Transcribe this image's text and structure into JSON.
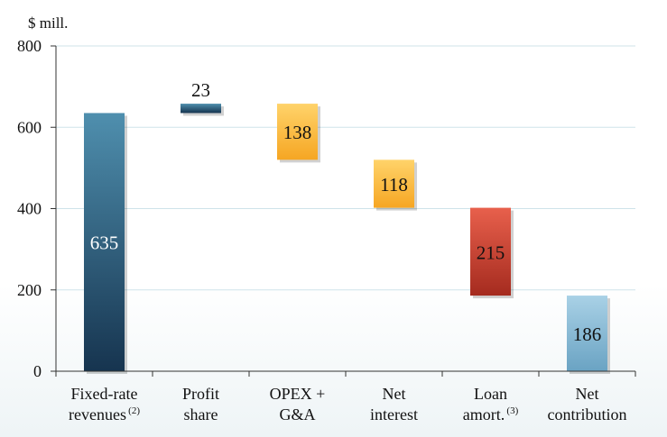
{
  "chart_data": {
    "type": "bar",
    "subtype": "waterfall",
    "unit_label": "$ mill.",
    "ylim": [
      0,
      800
    ],
    "y_ticks": [
      0,
      200,
      400,
      600,
      800
    ],
    "grid": true,
    "categories": [
      {
        "lines": [
          "Fixed-rate",
          "revenues"
        ],
        "footnote": "(2)"
      },
      {
        "lines": [
          "Profit",
          "share"
        ],
        "footnote": ""
      },
      {
        "lines": [
          "OPEX +",
          "G&A"
        ],
        "footnote": ""
      },
      {
        "lines": [
          "Net",
          "interest"
        ],
        "footnote": ""
      },
      {
        "lines": [
          "Loan",
          "amort."
        ],
        "footnote": "(3)"
      },
      {
        "lines": [
          "Net",
          "contribution"
        ],
        "footnote": ""
      }
    ],
    "bars": [
      {
        "label": "635",
        "start": 0,
        "end": 635,
        "style": "navy",
        "label_pos": "inside",
        "label_color": "#ffffff"
      },
      {
        "label": "23",
        "start": 635,
        "end": 658,
        "style": "navy",
        "label_pos": "above",
        "label_color": "#111111"
      },
      {
        "label": "138",
        "start": 658,
        "end": 520,
        "style": "gold",
        "label_pos": "inside",
        "label_color": "#111111"
      },
      {
        "label": "118",
        "start": 520,
        "end": 402,
        "style": "gold",
        "label_pos": "inside",
        "label_color": "#111111"
      },
      {
        "label": "215",
        "start": 402,
        "end": 186,
        "style": "red",
        "label_pos": "inside",
        "label_color": "#111111"
      },
      {
        "label": "186",
        "start": 0,
        "end": 186,
        "style": "lightblue",
        "label_pos": "inside",
        "label_color": "#111111"
      }
    ],
    "colors": {
      "navy_top": "#4f8fae",
      "navy_bottom": "#16344f",
      "gold_top": "#ffd36a",
      "gold_bottom": "#f6a623",
      "red_top": "#e8604c",
      "red_bottom": "#a52b1f",
      "lightblue_top": "#a9d1e6",
      "lightblue_bottom": "#6aa3c3",
      "grid": "#cfe3ea"
    }
  }
}
